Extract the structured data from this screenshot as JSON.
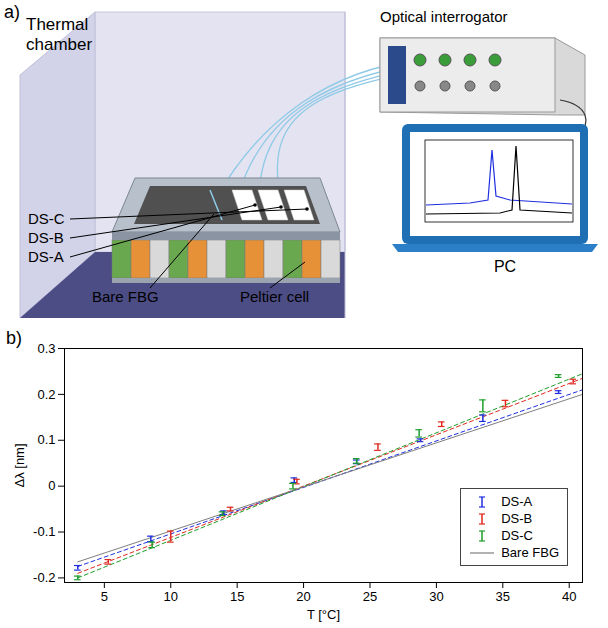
{
  "diagram": {
    "panel_label": "a)",
    "thermal_chamber": "Thermal chamber",
    "optical_interrogator": "Optical interrogator",
    "pc": "PC",
    "sensors": [
      "DS-C",
      "DS-B",
      "DS-A"
    ],
    "bare_fbg": "Bare FBG",
    "peltier_cell": "Peltier cell"
  },
  "chart_data": {
    "type": "scatter",
    "panel_label": "b)",
    "x_label": "T [°C]",
    "y_label": "Δλ [nm]",
    "xlim": [
      2,
      41
    ],
    "xticks": [
      5,
      10,
      15,
      20,
      25,
      30,
      35,
      40
    ],
    "ylim": [
      -0.21,
      0.3
    ],
    "yticks": [
      -0.2,
      -0.1,
      0,
      0.1,
      0.2,
      0.3
    ],
    "grid": false,
    "legend": "lower right",
    "series": [
      {
        "name": "DS-A",
        "color": "#1f2fe0",
        "line_style": "dashed",
        "x": [
          3,
          8.5,
          14,
          19.3,
          24,
          28.8,
          33.5,
          39.2
        ],
        "values": [
          -0.178,
          -0.115,
          -0.058,
          0.013,
          0.053,
          0.1,
          0.148,
          0.205
        ],
        "errors": [
          0.005,
          0.006,
          0.004,
          0.005,
          0.004,
          0.003,
          0.007,
          0.003
        ],
        "fit": {
          "x": [
            3,
            41
          ],
          "values": [
            -0.175,
            0.21
          ]
        }
      },
      {
        "name": "DS-B",
        "color": "#e0281f",
        "line_style": "dashed",
        "x": [
          5.3,
          10,
          14.5,
          19.5,
          25.6,
          30.4,
          35.2,
          40.3
        ],
        "values": [
          -0.165,
          -0.11,
          -0.05,
          0.01,
          0.085,
          0.135,
          0.18,
          0.228
        ],
        "errors": [
          0.005,
          0.012,
          0.004,
          0.005,
          0.007,
          0.005,
          0.007,
          0.005
        ],
        "fit": {
          "x": [
            3,
            41
          ],
          "values": [
            -0.19,
            0.235
          ]
        }
      },
      {
        "name": "DS-C",
        "color": "#1e9e2a",
        "line_style": "dashed",
        "x": [
          3,
          8.6,
          13.9,
          19.2,
          24,
          28.7,
          33.5,
          39.2
        ],
        "values": [
          -0.2,
          -0.128,
          -0.06,
          0.0,
          0.055,
          0.115,
          0.175,
          0.24
        ],
        "errors": [
          0.004,
          0.006,
          0.004,
          0.006,
          0.005,
          0.008,
          0.013,
          0.003
        ],
        "fit": {
          "x": [
            3,
            41
          ],
          "values": [
            -0.2,
            0.245
          ]
        }
      },
      {
        "name": "Bare FBG",
        "color": "#7f7f7f",
        "line_style": "solid",
        "fit": {
          "x": [
            3,
            41
          ],
          "values": [
            -0.165,
            0.2
          ]
        }
      }
    ]
  }
}
